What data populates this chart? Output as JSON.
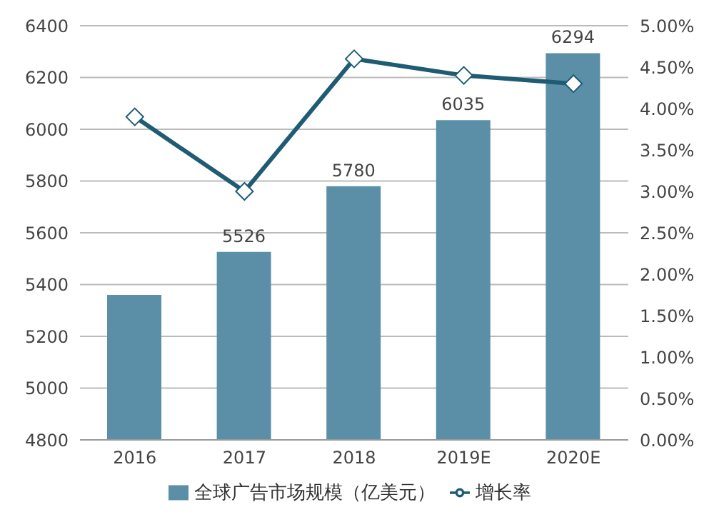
{
  "chart_data": {
    "type": "bar",
    "categories": [
      "2016",
      "2017",
      "2018",
      "2019E",
      "2020E"
    ],
    "series": [
      {
        "name": "全球广告市场规模（亿美元）",
        "color": "#5b8fa8",
        "values": [
          5360,
          5526,
          5780,
          6035,
          6294
        ],
        "value_labels": [
          null,
          "5526",
          "5780",
          "6035",
          "6294"
        ]
      },
      {
        "name": "增长率",
        "type": "line",
        "axis": "y2",
        "color": "#1f5c73",
        "values": [
          3.9,
          3.0,
          4.6,
          4.4,
          4.3
        ],
        "marker": "diamond"
      }
    ],
    "ylim": [
      4800,
      6400
    ],
    "yticks": [
      4800,
      5000,
      5200,
      5400,
      5600,
      5800,
      6000,
      6200,
      6400
    ],
    "y2lim": [
      0,
      5
    ],
    "y2ticks": [
      {
        "value": 0,
        "label": "0.00%"
      },
      {
        "value": 0.5,
        "label": "0.50%"
      },
      {
        "value": 1,
        "label": "1.00%"
      },
      {
        "value": 1.5,
        "label": "1.50%"
      },
      {
        "value": 2,
        "label": "2.00%"
      },
      {
        "value": 2.5,
        "label": "2.50%"
      },
      {
        "value": 3,
        "label": "3.00%"
      },
      {
        "value": 3.5,
        "label": "3.50%"
      },
      {
        "value": 4,
        "label": "4.00%"
      },
      {
        "value": 4.5,
        "label": "4.50%"
      },
      {
        "value": 5,
        "label": "5.00%"
      }
    ],
    "grid": "y",
    "legend": "bottom"
  }
}
